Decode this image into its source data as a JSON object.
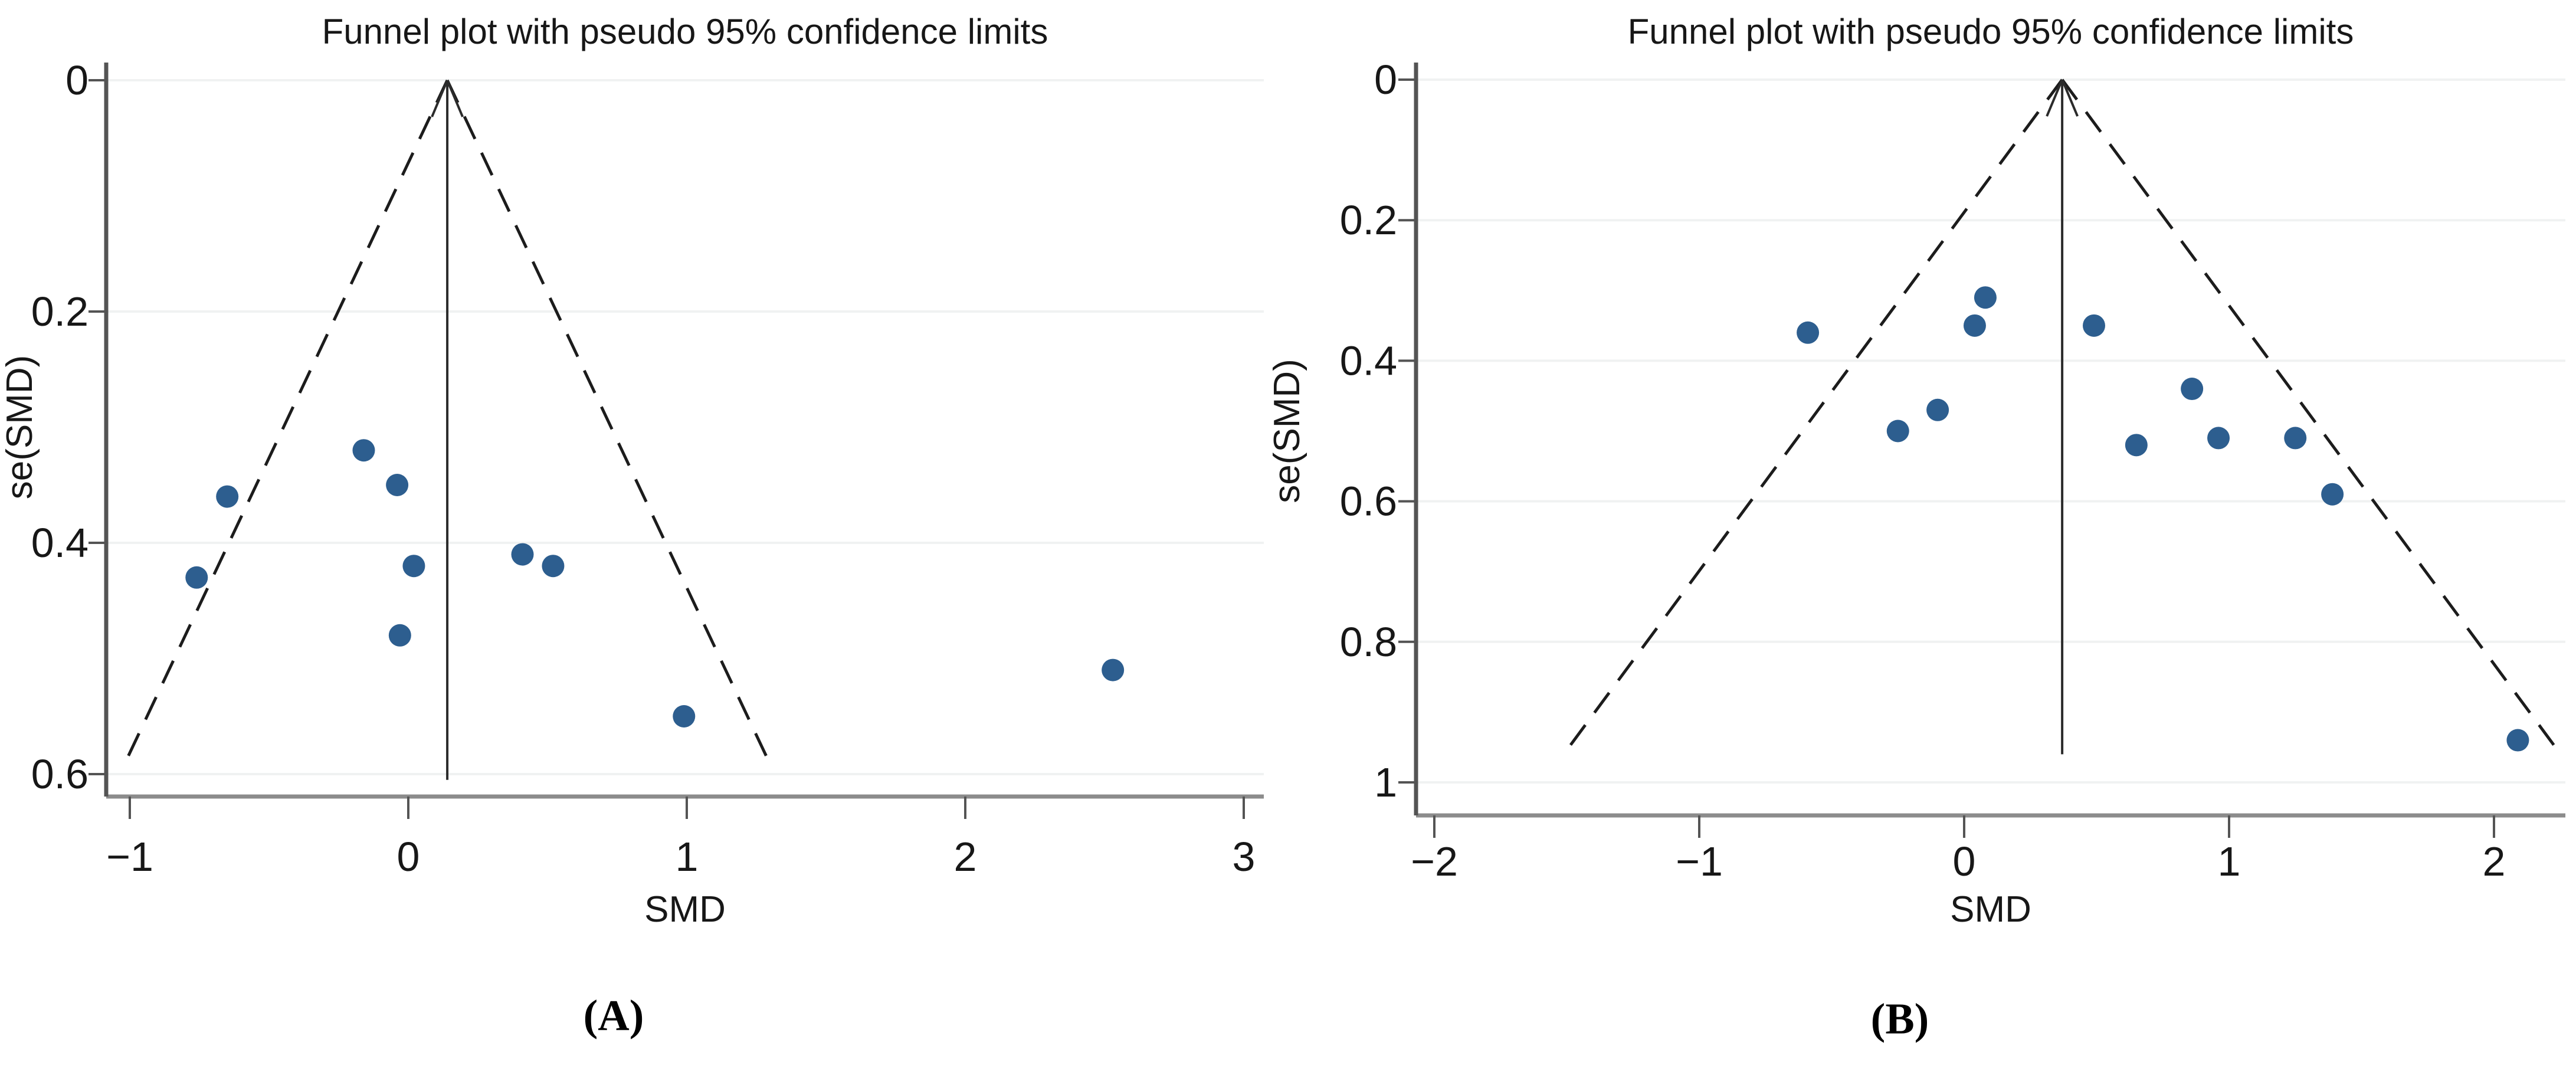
{
  "figure": {
    "captions": {
      "a": "(A)",
      "b": "(B)"
    }
  },
  "colors": {
    "point_fill": "#26598b",
    "gridline": "#f0f2f2",
    "x_axis_line": "#8c8c8c",
    "y_axis_line": "#545454",
    "tick_mark": "#545454",
    "dashed_limit": "#1c1c1c",
    "pooled_line": "#2b2b2b",
    "text": "#171717"
  },
  "chart_data": [
    {
      "id": "A",
      "type": "scatter",
      "title": "Funnel plot with pseudo 95% confidence limits",
      "xlabel": "SMD",
      "ylabel": "se(SMD)",
      "x_ticks": [
        -1,
        0,
        1,
        2,
        3
      ],
      "y_ticks": [
        0,
        0.2,
        0.4,
        0.6
      ],
      "xlim": [
        -1.1,
        3.1
      ],
      "ylim": [
        0,
        0.62
      ],
      "y_inverted": true,
      "grid": "horizontal",
      "legend": "none",
      "pooled_smd": 0.14,
      "funnel_slope": 1.96,
      "funnel_se_end": 0.59,
      "pooled_line_se_end": 0.605,
      "points": [
        {
          "smd": -0.76,
          "se": 0.43
        },
        {
          "smd": -0.65,
          "se": 0.36
        },
        {
          "smd": -0.16,
          "se": 0.32
        },
        {
          "smd": -0.04,
          "se": 0.35
        },
        {
          "smd": 0.02,
          "se": 0.42
        },
        {
          "smd": -0.03,
          "se": 0.48
        },
        {
          "smd": 0.41,
          "se": 0.41
        },
        {
          "smd": 0.52,
          "se": 0.42
        },
        {
          "smd": 0.99,
          "se": 0.55
        },
        {
          "smd": 2.53,
          "se": 0.51
        }
      ]
    },
    {
      "id": "B",
      "type": "scatter",
      "title": "Funnel plot with pseudo 95% confidence limits",
      "xlabel": "SMD",
      "ylabel": "se(SMD)",
      "x_ticks": [
        -2,
        -1,
        0,
        1,
        2
      ],
      "y_ticks": [
        0,
        0.2,
        0.4,
        0.6,
        0.8,
        1.0
      ],
      "xlim": [
        -2.15,
        2.3
      ],
      "ylim": [
        0,
        1.05
      ],
      "y_inverted": true,
      "grid": "horizontal",
      "legend": "none",
      "pooled_smd": 0.37,
      "funnel_slope": 1.96,
      "funnel_se_end": 0.95,
      "pooled_line_se_end": 0.96,
      "points": [
        {
          "smd": -0.59,
          "se": 0.36
        },
        {
          "smd": -0.25,
          "se": 0.5
        },
        {
          "smd": -0.1,
          "se": 0.47
        },
        {
          "smd": 0.04,
          "se": 0.35
        },
        {
          "smd": 0.08,
          "se": 0.31
        },
        {
          "smd": 0.49,
          "se": 0.35
        },
        {
          "smd": 0.65,
          "se": 0.52
        },
        {
          "smd": 0.86,
          "se": 0.44
        },
        {
          "smd": 0.96,
          "se": 0.51
        },
        {
          "smd": 1.25,
          "se": 0.51
        },
        {
          "smd": 1.39,
          "se": 0.59
        },
        {
          "smd": 2.09,
          "se": 0.94
        }
      ]
    }
  ]
}
